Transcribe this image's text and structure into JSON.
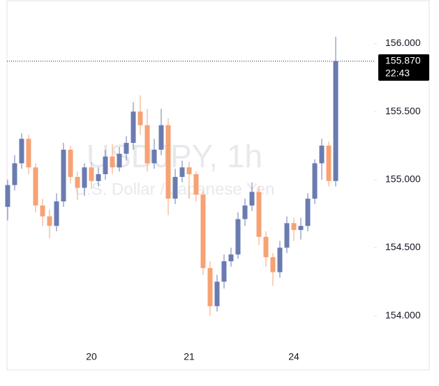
{
  "chart_data": {
    "type": "candlestick",
    "title": "USDJPY, 1h",
    "subtitle": "U.S. Dollar / Japanese Yen",
    "categories": [
      null,
      null,
      null,
      null,
      null,
      null,
      null,
      null,
      null,
      null,
      null,
      null,
      "20",
      null,
      null,
      null,
      null,
      null,
      null,
      null,
      null,
      null,
      null,
      null,
      null,
      null,
      "21",
      null,
      null,
      null,
      null,
      null,
      null,
      null,
      null,
      null,
      null,
      null,
      null,
      null,
      null,
      "24",
      null,
      null,
      null,
      null,
      null,
      null
    ],
    "open": [
      154.8,
      154.96,
      155.12,
      155.3,
      155.09,
      154.81,
      154.73,
      154.66,
      154.84,
      155.22,
      155.02,
      154.94,
      155.09,
      154.99,
      155.04,
      155.17,
      155.09,
      155.19,
      155.27,
      155.5,
      155.4,
      155.12,
      155.22,
      155.4,
      154.86,
      155.02,
      155.09,
      155.04,
      154.89,
      154.35,
      154.07,
      154.25,
      154.4,
      154.45,
      154.71,
      154.81,
      154.91,
      154.58,
      154.43,
      154.32,
      154.5,
      154.68,
      154.63,
      154.66,
      154.86,
      155.12,
      155.25,
      154.99
    ],
    "high": [
      155.0,
      155.18,
      155.34,
      155.33,
      155.12,
      154.86,
      154.78,
      154.9,
      155.27,
      155.25,
      155.06,
      155.12,
      155.13,
      155.09,
      155.22,
      155.26,
      155.24,
      155.32,
      155.57,
      155.62,
      155.52,
      155.3,
      155.52,
      155.45,
      155.08,
      155.14,
      155.13,
      155.06,
      154.92,
      154.4,
      154.3,
      154.45,
      154.5,
      154.76,
      154.86,
      154.98,
      154.95,
      154.62,
      154.46,
      154.55,
      154.73,
      154.72,
      154.72,
      154.9,
      155.15,
      155.3,
      155.28,
      156.05
    ],
    "low": [
      154.7,
      154.92,
      155.08,
      155.04,
      154.76,
      154.66,
      154.57,
      154.62,
      154.8,
      154.97,
      154.85,
      154.88,
      154.93,
      154.95,
      155.0,
      155.04,
      155.06,
      155.14,
      155.22,
      155.33,
      155.06,
      155.08,
      155.18,
      154.74,
      154.82,
      154.98,
      154.86,
      154.84,
      154.3,
      154.0,
      154.03,
      154.2,
      154.36,
      154.42,
      154.66,
      154.77,
      154.52,
      154.36,
      154.22,
      154.28,
      154.46,
      154.55,
      154.56,
      154.62,
      154.82,
      155.0,
      154.95,
      154.95
    ],
    "close": [
      154.96,
      155.12,
      155.3,
      155.09,
      154.81,
      154.73,
      154.66,
      154.84,
      155.22,
      155.02,
      154.94,
      155.09,
      154.99,
      155.04,
      155.17,
      155.09,
      155.19,
      155.27,
      155.5,
      155.4,
      155.12,
      155.22,
      155.4,
      154.86,
      155.02,
      155.09,
      155.04,
      154.89,
      154.35,
      154.07,
      154.25,
      154.4,
      154.45,
      154.71,
      154.81,
      154.91,
      154.58,
      154.43,
      154.32,
      154.5,
      154.68,
      154.63,
      154.66,
      154.86,
      155.12,
      155.25,
      154.99,
      155.87
    ],
    "up_color": "#6a7bb0",
    "down_color": "#f7a273",
    "ylim": [
      153.76,
      156.32
    ],
    "yticks": [
      {
        "value": 154,
        "label": "154.000"
      },
      {
        "value": 154.5,
        "label": "154.500"
      },
      {
        "value": 155,
        "label": "155.000"
      },
      {
        "value": 155.5,
        "label": "155.500"
      },
      {
        "value": 156,
        "label": "156.000"
      }
    ],
    "last_price": {
      "value": 155.87,
      "label": "155.870"
    },
    "last_time": "22:43"
  }
}
